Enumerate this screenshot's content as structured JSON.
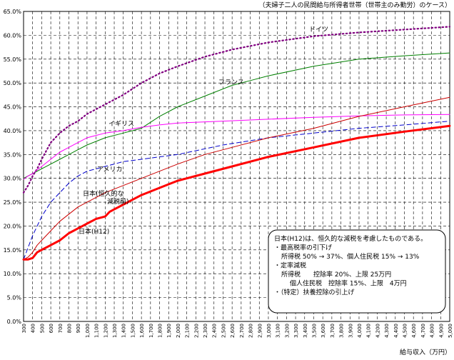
{
  "chart_data": {
    "type": "line",
    "title": "（夫婦子二人の民間給与所得者世帯（世帯主のみ勤労）のケース）",
    "xlabel": "給与収入（万円）",
    "ylabel": "",
    "ylim": [
      0,
      65
    ],
    "xlim": [
      300,
      5000
    ],
    "grid": true,
    "legend": "none",
    "y_ticks": [
      "0.0%",
      "5.0%",
      "10.0%",
      "15.0%",
      "20.0%",
      "25.0%",
      "30.0%",
      "35.0%",
      "40.0%",
      "45.0%",
      "50.0%",
      "55.0%",
      "60.0%",
      "65.0%"
    ],
    "x_ticks": [
      "300",
      "400",
      "500",
      "600",
      "700",
      "800",
      "900",
      "1,000",
      "1,100",
      "1,200",
      "1,300",
      "1,400",
      "1,500",
      "1,600",
      "1,700",
      "1,800",
      "1,900",
      "2,000",
      "2,100",
      "2,200",
      "2,300",
      "2,400",
      "2,500",
      "2,600",
      "2,700",
      "2,800",
      "2,900",
      "3,000",
      "3,100",
      "3,200",
      "3,300",
      "3,400",
      "3,500",
      "3,600",
      "3,700",
      "3,800",
      "3,900",
      "4,000",
      "4,100",
      "4,200",
      "4,300",
      "4,400",
      "4,500",
      "4,600",
      "4,700",
      "4,800",
      "4,900",
      "5,000"
    ],
    "series": [
      {
        "name": "ドイツ",
        "color": "#800080",
        "dash": "dot",
        "width": 2.2,
        "x": [
          300,
          350,
          400,
          450,
          500,
          600,
          700,
          800,
          900,
          1000,
          1200,
          1400,
          1600,
          1800,
          2000,
          2300,
          2600,
          3000,
          3500,
          4000,
          4500,
          5000
        ],
        "y": [
          27.0,
          28.5,
          30.5,
          32.0,
          34.0,
          37.5,
          39.5,
          41.0,
          42.0,
          43.5,
          45.5,
          47.5,
          50.0,
          52.0,
          53.5,
          55.5,
          57.0,
          58.5,
          59.8,
          60.6,
          61.2,
          61.8
        ]
      },
      {
        "name": "フランス",
        "color": "#008000",
        "dash": "solid",
        "width": 1,
        "x": [
          300,
          400,
          500,
          600,
          700,
          800,
          900,
          1000,
          1200,
          1400,
          1600,
          1800,
          2000,
          2200,
          2400,
          2600,
          2800,
          3000,
          3500,
          4000,
          4500,
          5000
        ],
        "y": [
          30.0,
          31.0,
          32.0,
          33.0,
          34.0,
          35.0,
          36.0,
          37.0,
          38.5,
          39.5,
          40.5,
          43.0,
          45.0,
          46.5,
          48.0,
          49.5,
          50.5,
          51.5,
          53.5,
          55.0,
          55.7,
          56.3
        ]
      },
      {
        "name": "イギリス",
        "color": "#ff00ff",
        "dash": "solid",
        "width": 1,
        "x": [
          300,
          350,
          400,
          500,
          600,
          700,
          800,
          900,
          1000,
          1200,
          1400,
          1600,
          1800,
          2000,
          2500,
          3000,
          3500,
          4000,
          4500,
          5000
        ],
        "y": [
          29.8,
          30.5,
          31.0,
          32.5,
          34.0,
          35.5,
          36.5,
          37.5,
          38.5,
          39.5,
          40.0,
          40.7,
          41.2,
          41.6,
          42.0,
          42.4,
          42.8,
          43.1,
          43.3,
          43.4
        ]
      },
      {
        "name": "アメリカ",
        "color": "#0000cc",
        "dash": "dash",
        "width": 1,
        "x": [
          300,
          400,
          500,
          600,
          700,
          800,
          900,
          1000,
          1200,
          1400,
          1600,
          1800,
          2000,
          2200,
          2500,
          3000,
          3500,
          4000,
          4500,
          5000
        ],
        "y": [
          13.0,
          18.0,
          22.0,
          25.0,
          27.0,
          29.0,
          30.5,
          31.5,
          32.5,
          33.5,
          34.0,
          34.5,
          35.0,
          35.8,
          37.0,
          38.5,
          39.5,
          40.5,
          41.2,
          42.0
        ]
      },
      {
        "name": "日本(恒久的な減税前)",
        "color": "#cc0000",
        "dash": "solid",
        "width": 1,
        "x": [
          300,
          350,
          400,
          450,
          500,
          600,
          700,
          800,
          900,
          1000,
          1200,
          1400,
          1600,
          1800,
          2000,
          2300,
          2600,
          3000,
          3500,
          4000,
          4500,
          5000
        ],
        "y": [
          13.0,
          13.5,
          14.5,
          16.0,
          17.0,
          19.0,
          21.0,
          22.5,
          24.0,
          25.0,
          27.0,
          28.5,
          30.0,
          31.5,
          33.0,
          35.0,
          36.5,
          38.5,
          40.5,
          43.0,
          45.0,
          47.0
        ]
      },
      {
        "name": "日本(H12)",
        "color": "#ff0000",
        "dash": "solid",
        "width": 3,
        "x": [
          300,
          350,
          400,
          450,
          500,
          600,
          700,
          800,
          900,
          1000,
          1100,
          1200,
          1250,
          1300,
          1400,
          1500,
          1600,
          1800,
          2000,
          2300,
          2600,
          3000,
          3500,
          4000,
          4500,
          5000
        ],
        "y": [
          13.0,
          13.0,
          13.3,
          14.5,
          15.0,
          16.0,
          17.0,
          18.5,
          19.5,
          20.5,
          21.5,
          22.0,
          23.0,
          23.5,
          24.5,
          25.5,
          26.5,
          28.0,
          29.5,
          31.0,
          32.5,
          34.5,
          36.5,
          38.5,
          39.8,
          41.0
        ]
      }
    ],
    "annotations": [
      "日本(H12)は、恒久的な減税を考慮したものである。",
      "・最高税率の引下げ",
      "所得税 50% → 37%、個人住民税 15% → 13%",
      "・定率減税",
      "所得税　　控除率 20%、上限 25万円",
      "個人住民税　控除率 15%、上限　4万円",
      "・（特定）扶養控除の引上げ"
    ]
  }
}
